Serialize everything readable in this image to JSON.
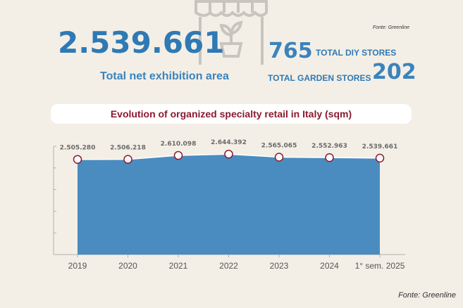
{
  "header": {
    "source": "Fonte: Greenline",
    "total_area": "2.539.661",
    "total_area_label": "Total net exhibition area",
    "diy_count": "765",
    "diy_label": "TOTAL DIY STORES",
    "garden_label": "TOTAL GARDEN STORES",
    "garden_count": "202"
  },
  "chart_data": {
    "type": "area",
    "title": "Evolution of organized specialty retail in Italy (sqm)",
    "categories": [
      "2019",
      "2020",
      "2021",
      "2022",
      "2023",
      "2024",
      "1° sem. 2025"
    ],
    "values": [
      2505280,
      2506218,
      2610098,
      2644392,
      2565065,
      2552963,
      2539661
    ],
    "labels": [
      "2.505.280",
      "2.506.218",
      "2.610.098",
      "2.644.392",
      "2.565.065",
      "2.552.963",
      "2.539.661"
    ],
    "ylim": [
      0,
      3000000
    ],
    "grid": false,
    "fill_color": "#4a8cc0",
    "marker_color": "#8b1a2e"
  },
  "footer": {
    "source": "Fonte: Greenline"
  },
  "colors": {
    "accent_blue": "#2f79b5",
    "title_red": "#8b1a2e",
    "background": "#f3efe6"
  }
}
